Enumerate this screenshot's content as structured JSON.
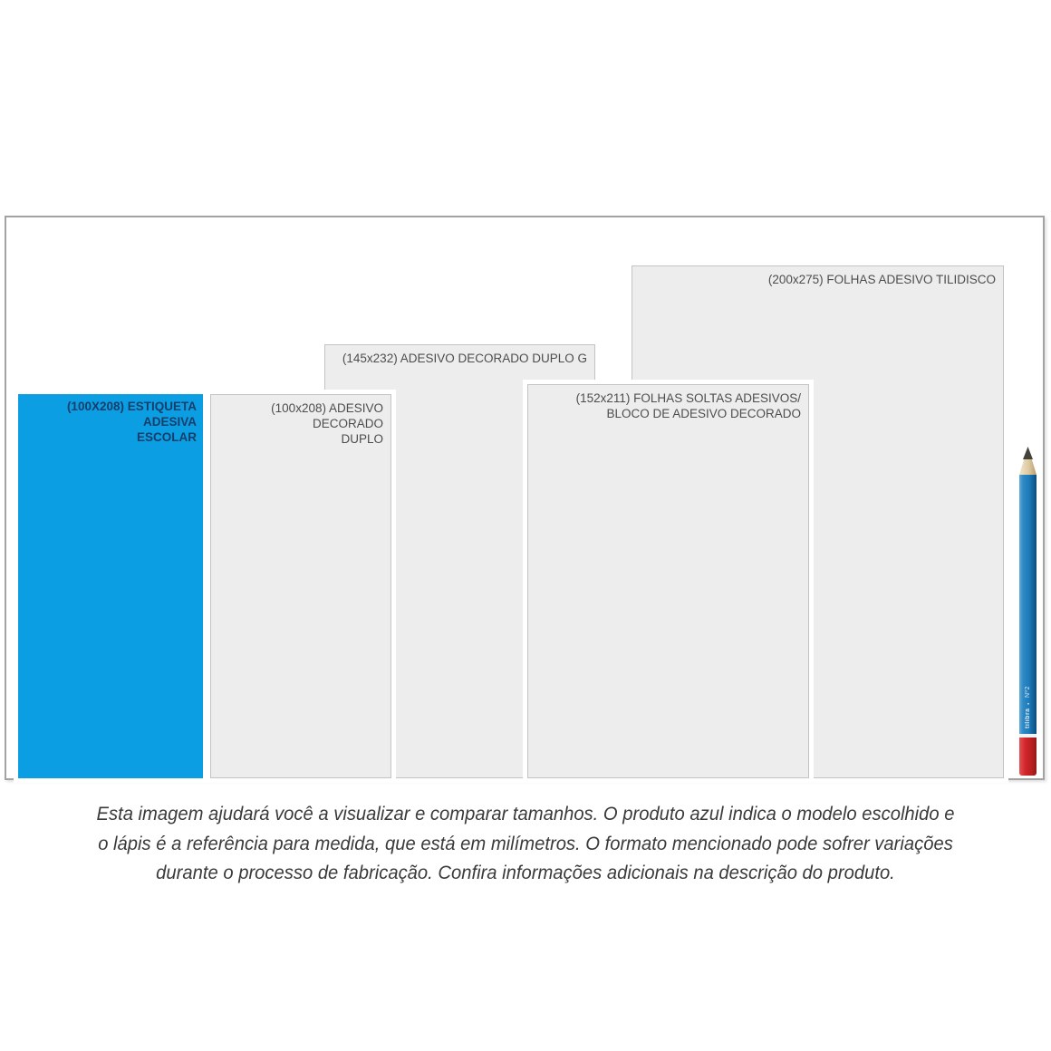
{
  "diagram": {
    "products": [
      {
        "label_lines": [
          "(100X208) ESTIQUETA ADESIVA",
          "ESCOLAR"
        ],
        "size_mm": "100X208",
        "highlighted": true
      },
      {
        "label_lines": [
          "(100x208) ADESIVO DECORADO",
          "DUPLO"
        ],
        "size_mm": "100x208",
        "highlighted": false
      },
      {
        "label_lines": [
          "(145x232) ADESIVO DECORADO DUPLO G"
        ],
        "size_mm": "145x232",
        "highlighted": false
      },
      {
        "label_lines": [
          "(152x211) FOLHAS SOLTAS ADESIVOS/",
          "BLOCO DE ADESIVO DECORADO"
        ],
        "size_mm": "152x211",
        "highlighted": false
      },
      {
        "label_lines": [
          "(200x275) FOLHAS ADESIVO TILIDISCO"
        ],
        "size_mm": "200x275",
        "highlighted": false
      }
    ],
    "pencil": {
      "grade": "Nº2",
      "logo_glyph": "▪",
      "brand": "tilibra"
    },
    "colors": {
      "highlight_fill": "#0c9ee3",
      "highlight_text": "#163e6b",
      "sheet_fill": "#ededed",
      "sheet_border": "#c3c3c3",
      "label_text": "#4d4d4d",
      "pencil_blue": "#1e7cba",
      "pencil_red": "#d0242b"
    }
  },
  "caption": {
    "lines": [
      "Esta imagem ajudará você a visualizar e comparar tamanhos. O produto azul indica o modelo escolhido e",
      "o lápis é a referência para medida, que está em milímetros. O formato mencionado pode sofrer variações",
      "durante o processo de fabricação. Confira informações adicionais na descrição do produto."
    ]
  }
}
